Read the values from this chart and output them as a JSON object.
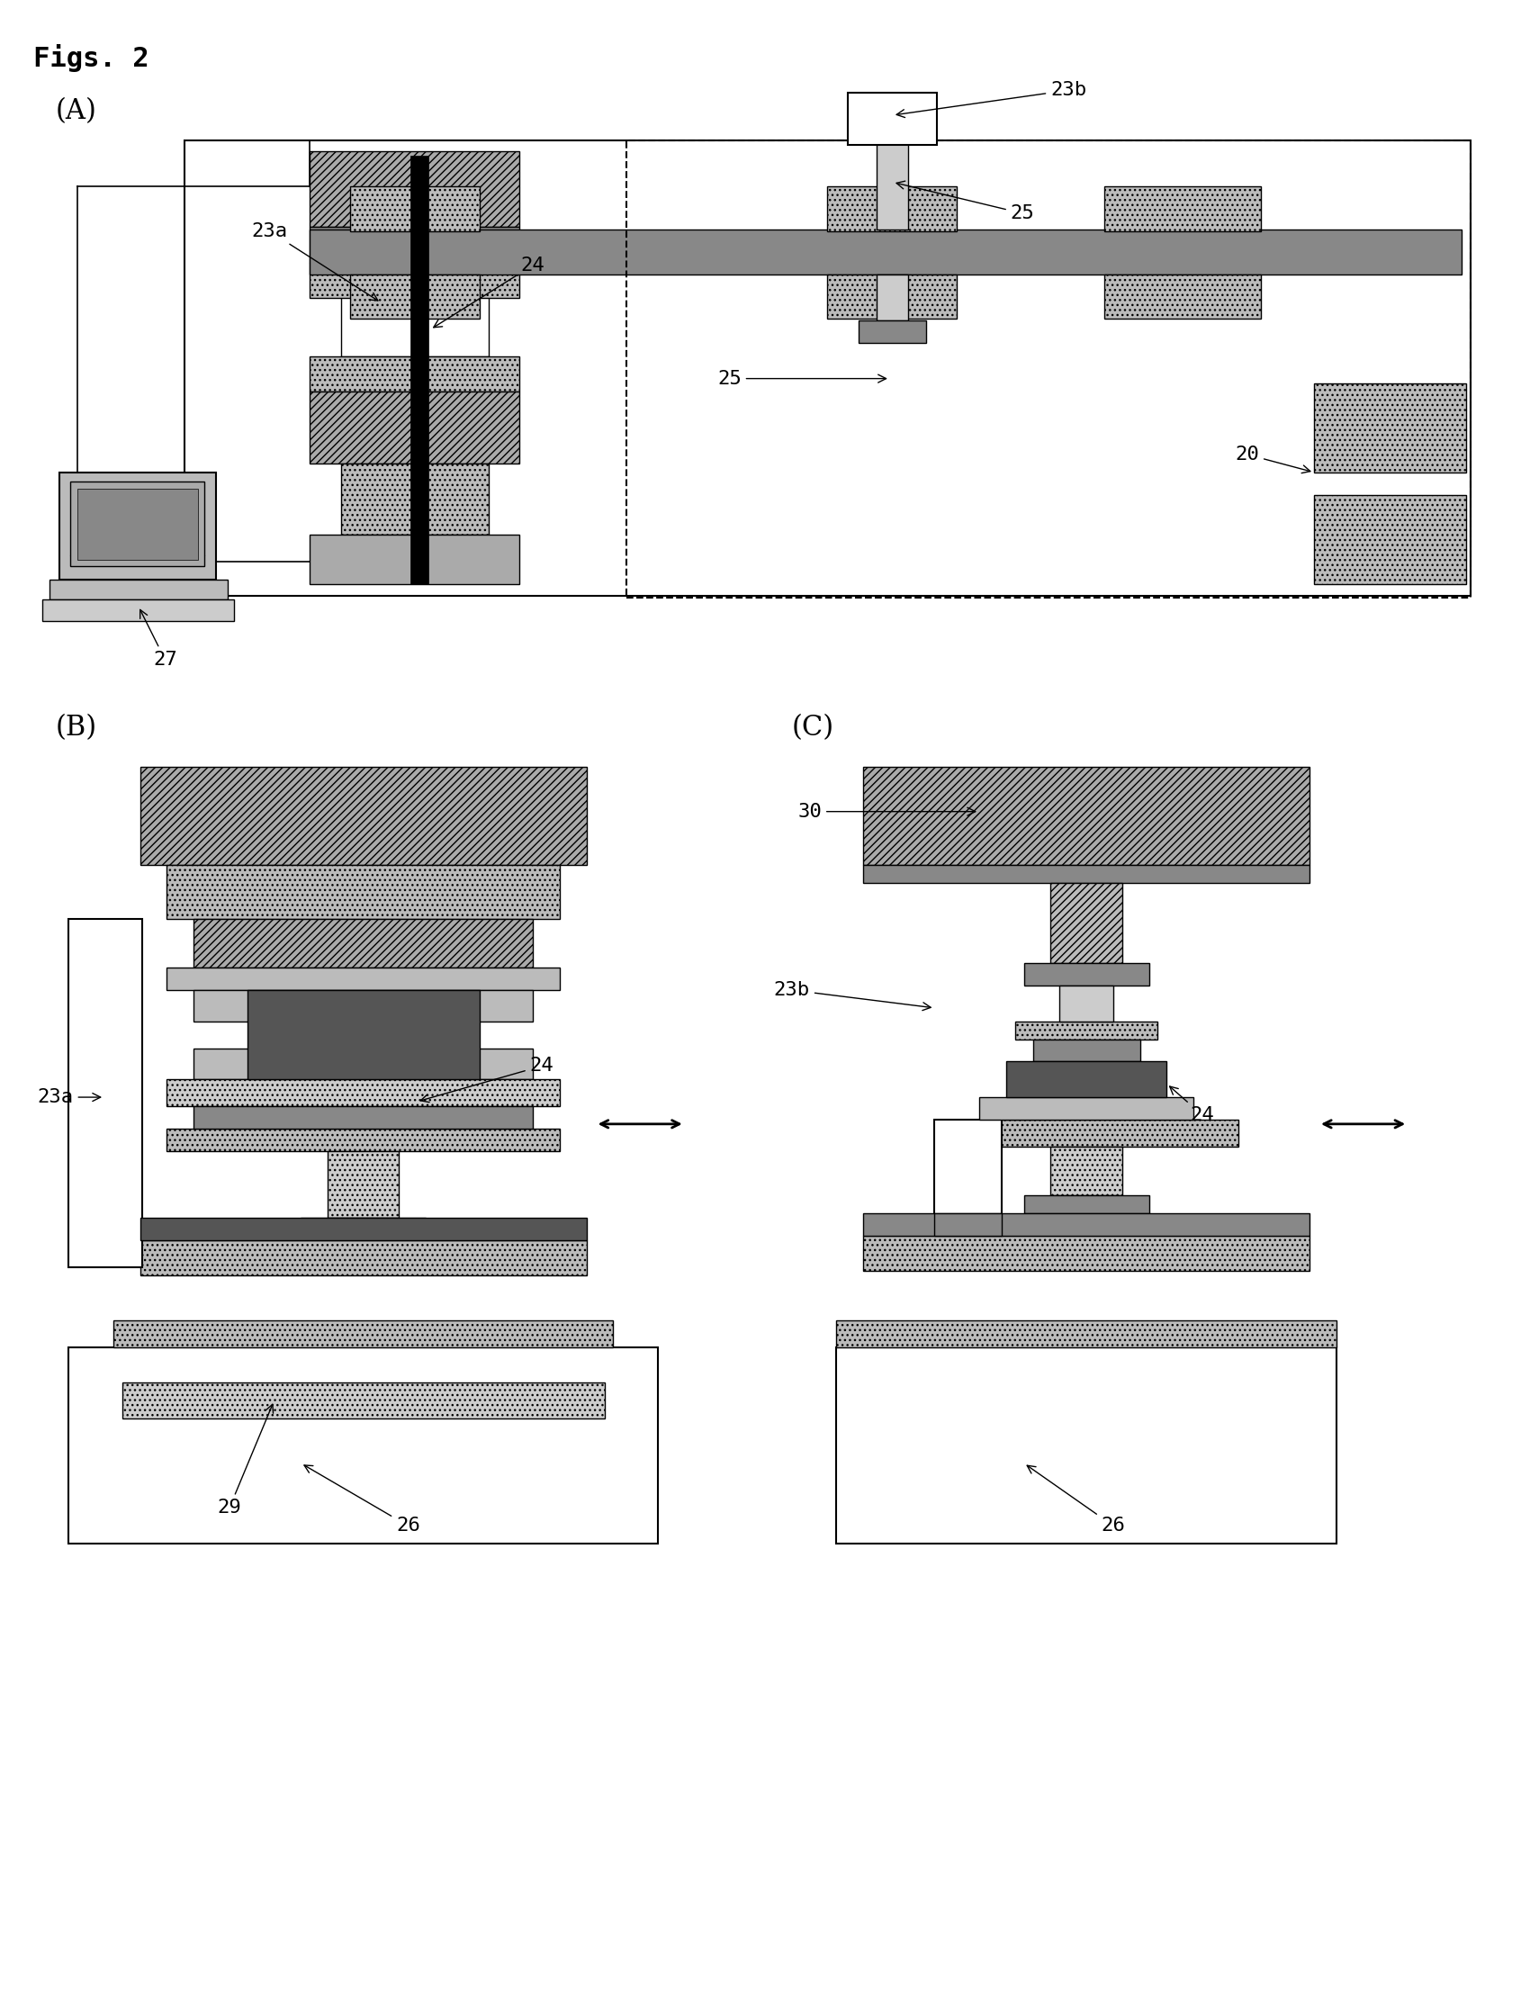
{
  "title": "Figs. 2",
  "bg_color": "#ffffff",
  "fig_width": 17.1,
  "fig_height": 22.11,
  "label_A": "(A)",
  "label_B": "(B)",
  "label_C": "(C)",
  "c_dark": "#555555",
  "c_med": "#888888",
  "c_light": "#aaaaaa",
  "c_lighter": "#bbbbbb",
  "c_lightest": "#cccccc",
  "c_white": "#ffffff",
  "c_black": "#000000",
  "c_hatch1": "#999999",
  "c_hatch2": "#777777"
}
